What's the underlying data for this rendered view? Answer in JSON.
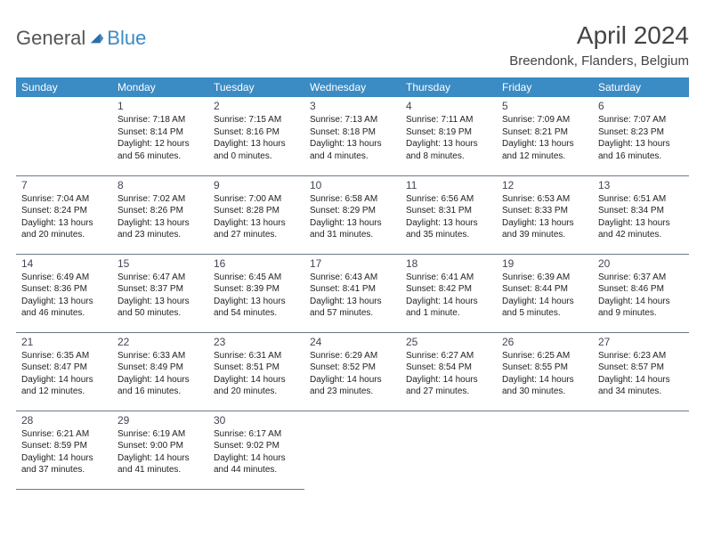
{
  "logo": {
    "general": "General",
    "blue": "Blue"
  },
  "title": "April 2024",
  "location": "Breendonk, Flanders, Belgium",
  "weekdays": [
    "Sunday",
    "Monday",
    "Tuesday",
    "Wednesday",
    "Thursday",
    "Friday",
    "Saturday"
  ],
  "header_bg": "#3b8bc4",
  "header_fg": "#ffffff",
  "border_color": "#6a7a8a",
  "days": {
    "1": {
      "sr": "Sunrise: 7:18 AM",
      "ss": "Sunset: 8:14 PM",
      "dl": "Daylight: 12 hours and 56 minutes."
    },
    "2": {
      "sr": "Sunrise: 7:15 AM",
      "ss": "Sunset: 8:16 PM",
      "dl": "Daylight: 13 hours and 0 minutes."
    },
    "3": {
      "sr": "Sunrise: 7:13 AM",
      "ss": "Sunset: 8:18 PM",
      "dl": "Daylight: 13 hours and 4 minutes."
    },
    "4": {
      "sr": "Sunrise: 7:11 AM",
      "ss": "Sunset: 8:19 PM",
      "dl": "Daylight: 13 hours and 8 minutes."
    },
    "5": {
      "sr": "Sunrise: 7:09 AM",
      "ss": "Sunset: 8:21 PM",
      "dl": "Daylight: 13 hours and 12 minutes."
    },
    "6": {
      "sr": "Sunrise: 7:07 AM",
      "ss": "Sunset: 8:23 PM",
      "dl": "Daylight: 13 hours and 16 minutes."
    },
    "7": {
      "sr": "Sunrise: 7:04 AM",
      "ss": "Sunset: 8:24 PM",
      "dl": "Daylight: 13 hours and 20 minutes."
    },
    "8": {
      "sr": "Sunrise: 7:02 AM",
      "ss": "Sunset: 8:26 PM",
      "dl": "Daylight: 13 hours and 23 minutes."
    },
    "9": {
      "sr": "Sunrise: 7:00 AM",
      "ss": "Sunset: 8:28 PM",
      "dl": "Daylight: 13 hours and 27 minutes."
    },
    "10": {
      "sr": "Sunrise: 6:58 AM",
      "ss": "Sunset: 8:29 PM",
      "dl": "Daylight: 13 hours and 31 minutes."
    },
    "11": {
      "sr": "Sunrise: 6:56 AM",
      "ss": "Sunset: 8:31 PM",
      "dl": "Daylight: 13 hours and 35 minutes."
    },
    "12": {
      "sr": "Sunrise: 6:53 AM",
      "ss": "Sunset: 8:33 PM",
      "dl": "Daylight: 13 hours and 39 minutes."
    },
    "13": {
      "sr": "Sunrise: 6:51 AM",
      "ss": "Sunset: 8:34 PM",
      "dl": "Daylight: 13 hours and 42 minutes."
    },
    "14": {
      "sr": "Sunrise: 6:49 AM",
      "ss": "Sunset: 8:36 PM",
      "dl": "Daylight: 13 hours and 46 minutes."
    },
    "15": {
      "sr": "Sunrise: 6:47 AM",
      "ss": "Sunset: 8:37 PM",
      "dl": "Daylight: 13 hours and 50 minutes."
    },
    "16": {
      "sr": "Sunrise: 6:45 AM",
      "ss": "Sunset: 8:39 PM",
      "dl": "Daylight: 13 hours and 54 minutes."
    },
    "17": {
      "sr": "Sunrise: 6:43 AM",
      "ss": "Sunset: 8:41 PM",
      "dl": "Daylight: 13 hours and 57 minutes."
    },
    "18": {
      "sr": "Sunrise: 6:41 AM",
      "ss": "Sunset: 8:42 PM",
      "dl": "Daylight: 14 hours and 1 minute."
    },
    "19": {
      "sr": "Sunrise: 6:39 AM",
      "ss": "Sunset: 8:44 PM",
      "dl": "Daylight: 14 hours and 5 minutes."
    },
    "20": {
      "sr": "Sunrise: 6:37 AM",
      "ss": "Sunset: 8:46 PM",
      "dl": "Daylight: 14 hours and 9 minutes."
    },
    "21": {
      "sr": "Sunrise: 6:35 AM",
      "ss": "Sunset: 8:47 PM",
      "dl": "Daylight: 14 hours and 12 minutes."
    },
    "22": {
      "sr": "Sunrise: 6:33 AM",
      "ss": "Sunset: 8:49 PM",
      "dl": "Daylight: 14 hours and 16 minutes."
    },
    "23": {
      "sr": "Sunrise: 6:31 AM",
      "ss": "Sunset: 8:51 PM",
      "dl": "Daylight: 14 hours and 20 minutes."
    },
    "24": {
      "sr": "Sunrise: 6:29 AM",
      "ss": "Sunset: 8:52 PM",
      "dl": "Daylight: 14 hours and 23 minutes."
    },
    "25": {
      "sr": "Sunrise: 6:27 AM",
      "ss": "Sunset: 8:54 PM",
      "dl": "Daylight: 14 hours and 27 minutes."
    },
    "26": {
      "sr": "Sunrise: 6:25 AM",
      "ss": "Sunset: 8:55 PM",
      "dl": "Daylight: 14 hours and 30 minutes."
    },
    "27": {
      "sr": "Sunrise: 6:23 AM",
      "ss": "Sunset: 8:57 PM",
      "dl": "Daylight: 14 hours and 34 minutes."
    },
    "28": {
      "sr": "Sunrise: 6:21 AM",
      "ss": "Sunset: 8:59 PM",
      "dl": "Daylight: 14 hours and 37 minutes."
    },
    "29": {
      "sr": "Sunrise: 6:19 AM",
      "ss": "Sunset: 9:00 PM",
      "dl": "Daylight: 14 hours and 41 minutes."
    },
    "30": {
      "sr": "Sunrise: 6:17 AM",
      "ss": "Sunset: 9:02 PM",
      "dl": "Daylight: 14 hours and 44 minutes."
    }
  },
  "grid": [
    [
      null,
      1,
      2,
      3,
      4,
      5,
      6
    ],
    [
      7,
      8,
      9,
      10,
      11,
      12,
      13
    ],
    [
      14,
      15,
      16,
      17,
      18,
      19,
      20
    ],
    [
      21,
      22,
      23,
      24,
      25,
      26,
      27
    ],
    [
      28,
      29,
      30,
      null,
      null,
      null,
      null
    ]
  ]
}
